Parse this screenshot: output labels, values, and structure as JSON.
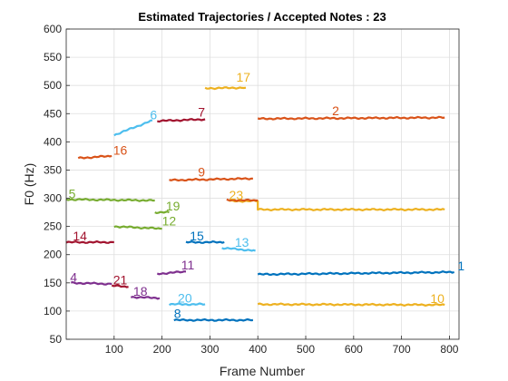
{
  "chart_data": {
    "type": "line",
    "title": "Estimated Trajectories / Accepted Notes : 23",
    "xlabel": "Frame Number",
    "ylabel": "F0 (Hz)",
    "xlim": [
      0,
      820
    ],
    "ylim": [
      50,
      600
    ],
    "xticks": [
      "100",
      "200",
      "300",
      "400",
      "500",
      "600",
      "700",
      "800"
    ],
    "yticks": [
      "50",
      "100",
      "150",
      "200",
      "250",
      "300",
      "350",
      "400",
      "450",
      "500",
      "550",
      "600"
    ],
    "grid": true,
    "series": [
      {
        "name": "1",
        "color": "#0072BD",
        "x": [
          400,
          810
        ],
        "y": [
          165,
          169
        ],
        "label_at": [
          817,
          172
        ]
      },
      {
        "name": "2",
        "color": "#D95319",
        "x": [
          400,
          790
        ],
        "y": [
          441,
          443
        ],
        "label_at": [
          555,
          447
        ]
      },
      {
        "name": "4",
        "color": "#7E2F8E",
        "x": [
          10,
          95
        ],
        "y": [
          150,
          148
        ],
        "label_at": [
          8,
          152
        ]
      },
      {
        "name": "5",
        "color": "#77AC30",
        "x": [
          0,
          185
        ],
        "y": [
          298,
          296
        ],
        "label_at": [
          5,
          300
        ]
      },
      {
        "name": "6",
        "color": "#4DBEEE",
        "x": [
          100,
          180
        ],
        "y": [
          412,
          438
        ],
        "label_at": [
          175,
          440
        ]
      },
      {
        "name": "7",
        "color": "#A2142F",
        "x": [
          190,
          290
        ],
        "y": [
          437,
          440
        ],
        "label_at": [
          275,
          445
        ]
      },
      {
        "name": "8",
        "color": "#0072BD",
        "x": [
          225,
          390
        ],
        "y": [
          84,
          84
        ],
        "label_at": [
          225,
          88
        ]
      },
      {
        "name": "9",
        "color": "#D95319",
        "x": [
          215,
          390
        ],
        "y": [
          332,
          335
        ],
        "label_at": [
          275,
          339
        ]
      },
      {
        "name": "10",
        "color": "#EDB120",
        "x": [
          400,
          790
        ],
        "y": [
          112,
          111
        ],
        "label_at": [
          760,
          114
        ]
      },
      {
        "name": "11",
        "color": "#7E2F8E",
        "x": [
          190,
          250
        ],
        "y": [
          166,
          170
        ],
        "label_at": [
          240,
          174
        ]
      },
      {
        "name": "12",
        "color": "#77AC30",
        "x": [
          100,
          200
        ],
        "y": [
          250,
          246
        ],
        "label_at": [
          200,
          252
        ]
      },
      {
        "name": "13",
        "color": "#4DBEEE",
        "x": [
          325,
          395
        ],
        "y": [
          212,
          207
        ],
        "label_at": [
          352,
          214
        ]
      },
      {
        "name": "14",
        "color": "#A2142F",
        "x": [
          0,
          100
        ],
        "y": [
          222,
          222
        ],
        "label_at": [
          14,
          225
        ]
      },
      {
        "name": "15",
        "color": "#0072BD",
        "x": [
          250,
          330
        ],
        "y": [
          222,
          222
        ],
        "label_at": [
          258,
          225
        ]
      },
      {
        "name": "16",
        "color": "#D95319",
        "x": [
          25,
          95
        ],
        "y": [
          371,
          375
        ],
        "label_at": [
          98,
          377
        ]
      },
      {
        "name": "17",
        "color": "#EDB120",
        "x": [
          290,
          375
        ],
        "y": [
          495,
          496
        ],
        "label_at": [
          355,
          507
        ]
      },
      {
        "name": "18",
        "color": "#7E2F8E",
        "x": [
          135,
          195
        ],
        "y": [
          125,
          123
        ],
        "label_at": [
          140,
          127
        ]
      },
      {
        "name": "19",
        "color": "#77AC30",
        "x": [
          185,
          215
        ],
        "y": [
          275,
          275
        ],
        "label_at": [
          208,
          278
        ]
      },
      {
        "name": "20",
        "color": "#4DBEEE",
        "x": [
          215,
          290
        ],
        "y": [
          112,
          112
        ],
        "label_at": [
          233,
          115
        ]
      },
      {
        "name": "21",
        "color": "#A2142F",
        "x": [
          95,
          130
        ],
        "y": [
          145,
          143
        ],
        "label_at": [
          98,
          147
        ]
      },
      {
        "name": "23",
        "color": "#EDB120",
        "x": [
          340,
          400,
          400,
          790
        ],
        "y": [
          295,
          295,
          280,
          280
        ],
        "label_at": [
          340,
          298
        ]
      },
      {
        "name": "",
        "color": "#D95319",
        "x": [
          335,
          400
        ],
        "y": [
          297,
          296
        ],
        "label_at": null
      }
    ]
  }
}
